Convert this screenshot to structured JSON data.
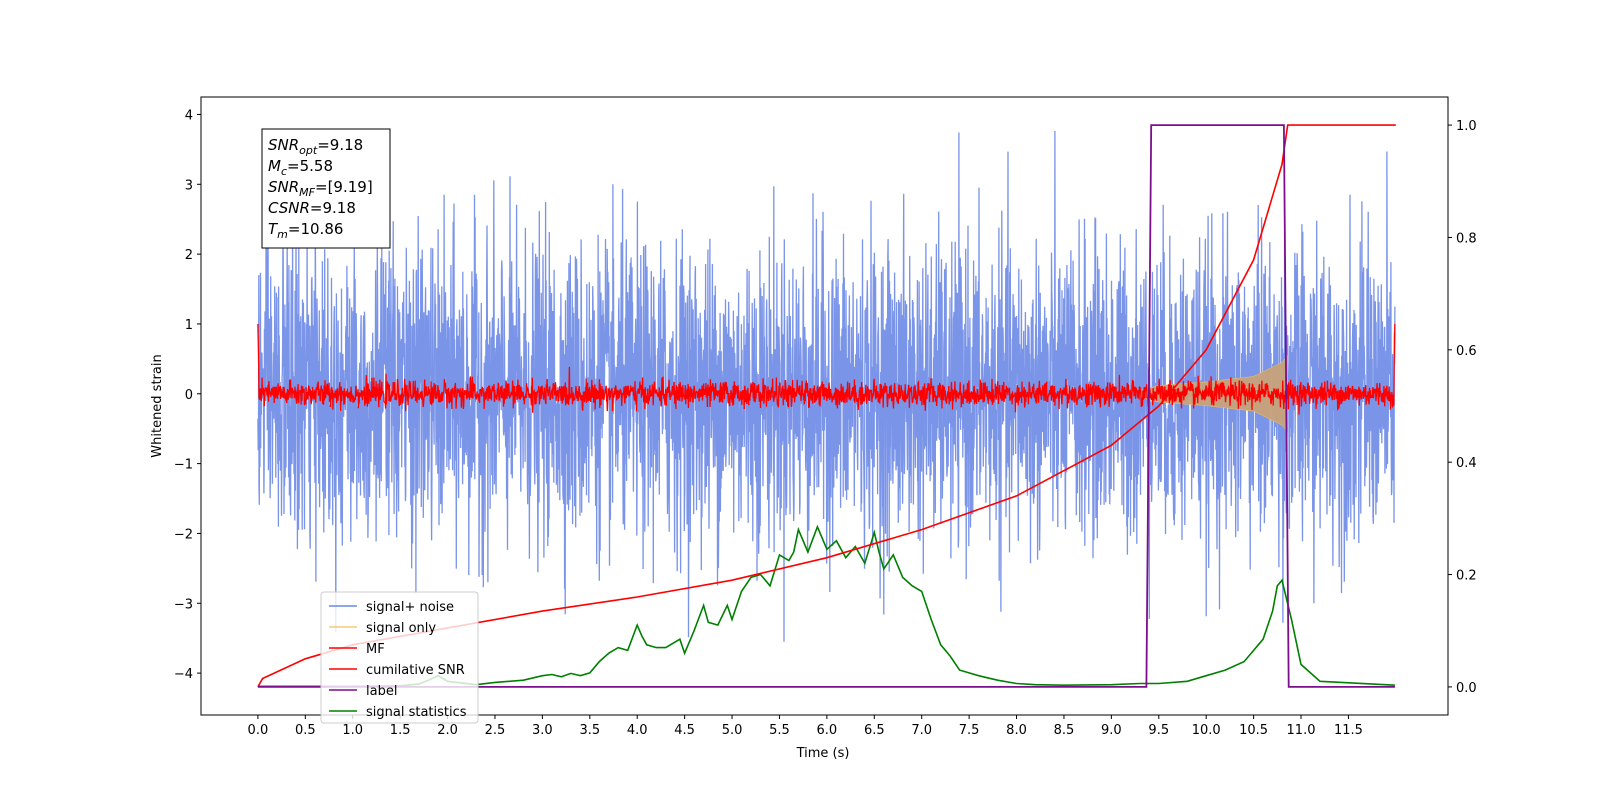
{
  "chart_data": {
    "type": "line",
    "title": "",
    "xlabel": "Time (s)",
    "ylabel": "Whitened strain",
    "xlim": [
      -0.6,
      12.55
    ],
    "ylim": [
      -4.6,
      4.25
    ],
    "y2lim": [
      -0.05,
      1.05
    ],
    "x_ticks": [
      "0.0",
      "0.5",
      "1.0",
      "1.5",
      "2.0",
      "2.5",
      "3.0",
      "3.5",
      "4.0",
      "4.5",
      "5.0",
      "5.5",
      "6.0",
      "6.5",
      "7.0",
      "7.5",
      "8.0",
      "8.5",
      "9.0",
      "9.5",
      "10.0",
      "10.5",
      "11.0",
      "11.5"
    ],
    "y_ticks": [
      "4",
      "3",
      "2",
      "1",
      "0",
      "−1",
      "−2",
      "−3",
      "−4"
    ],
    "y2_ticks": [
      "1.0",
      "0.8",
      "0.6",
      "0.4",
      "0.2",
      "0.0"
    ],
    "grid": false,
    "legend_position": "lower-left",
    "colors": {
      "signal_noise": "#6b88e6",
      "signal_only": "#f0c060",
      "mf": "#ff0000",
      "cumulative_snr": "#ff0000",
      "label": "#7b0f8c",
      "signal_statistics": "#008000",
      "signal_envelope": "#c8a27a"
    },
    "series": [
      {
        "key": "signal_noise",
        "name": "signal+ noise",
        "axis": "left",
        "noise_sigma": 1.0,
        "x_range": [
          0.0,
          11.99
        ]
      },
      {
        "key": "signal_only",
        "name": "signal only",
        "axis": "left",
        "envelope": [
          [
            9.3,
            0.05
          ],
          [
            9.5,
            0.12
          ],
          [
            10.0,
            0.17
          ],
          [
            10.5,
            0.25
          ],
          [
            10.8,
            0.45
          ],
          [
            10.86,
            0.55
          ]
        ]
      },
      {
        "key": "mf",
        "name": "MF",
        "axis": "left",
        "noise_sigma": 0.09,
        "x_range": [
          0.0,
          11.99
        ]
      },
      {
        "key": "cumulative_snr",
        "name": "cumilative SNR",
        "axis": "right",
        "x": [
          0.0,
          0.05,
          0.5,
          1.0,
          2.0,
          3.0,
          4.0,
          5.0,
          6.0,
          7.0,
          8.0,
          9.0,
          9.5,
          10.0,
          10.5,
          10.8,
          10.86,
          12.0
        ],
        "values": [
          0.0,
          0.015,
          0.05,
          0.075,
          0.105,
          0.135,
          0.16,
          0.19,
          0.23,
          0.28,
          0.34,
          0.43,
          0.5,
          0.6,
          0.76,
          0.93,
          1.0,
          1.0
        ]
      },
      {
        "key": "label",
        "name": "label",
        "axis": "right",
        "x": [
          0.0,
          9.37,
          9.42,
          10.82,
          10.87,
          11.99
        ],
        "values": [
          0.0,
          0.0,
          1.0,
          1.0,
          0.0,
          0.0
        ]
      },
      {
        "key": "signal_statistics",
        "name": "signal statistics",
        "axis": "right",
        "x": [
          0.0,
          1.0,
          1.5,
          1.7,
          1.8,
          1.9,
          2.0,
          2.3,
          2.5,
          2.8,
          3.0,
          3.1,
          3.2,
          3.3,
          3.4,
          3.5,
          3.6,
          3.7,
          3.8,
          3.9,
          4.0,
          4.05,
          4.1,
          4.2,
          4.3,
          4.45,
          4.5,
          4.6,
          4.7,
          4.75,
          4.85,
          4.95,
          5.0,
          5.1,
          5.2,
          5.3,
          5.4,
          5.5,
          5.6,
          5.65,
          5.7,
          5.8,
          5.9,
          6.0,
          6.1,
          6.2,
          6.3,
          6.4,
          6.5,
          6.55,
          6.6,
          6.7,
          6.8,
          6.9,
          7.0,
          7.1,
          7.2,
          7.3,
          7.4,
          7.5,
          7.6,
          7.8,
          8.0,
          8.2,
          8.5,
          9.0,
          9.3,
          9.5,
          9.8,
          10.0,
          10.2,
          10.4,
          10.5,
          10.6,
          10.7,
          10.75,
          10.8,
          10.9,
          11.0,
          11.2,
          11.99
        ],
        "values": [
          0.001,
          0.001,
          0.002,
          0.005,
          0.012,
          0.02,
          0.01,
          0.004,
          0.008,
          0.012,
          0.02,
          0.022,
          0.018,
          0.024,
          0.02,
          0.025,
          0.045,
          0.06,
          0.07,
          0.065,
          0.11,
          0.09,
          0.075,
          0.07,
          0.07,
          0.085,
          0.06,
          0.1,
          0.145,
          0.115,
          0.11,
          0.145,
          0.12,
          0.17,
          0.195,
          0.2,
          0.18,
          0.235,
          0.225,
          0.24,
          0.28,
          0.24,
          0.285,
          0.245,
          0.26,
          0.23,
          0.25,
          0.22,
          0.275,
          0.24,
          0.21,
          0.235,
          0.195,
          0.18,
          0.17,
          0.12,
          0.075,
          0.055,
          0.03,
          0.025,
          0.02,
          0.012,
          0.006,
          0.004,
          0.003,
          0.004,
          0.006,
          0.006,
          0.01,
          0.02,
          0.03,
          0.045,
          0.065,
          0.085,
          0.135,
          0.18,
          0.19,
          0.12,
          0.04,
          0.01,
          0.003
        ]
      }
    ]
  },
  "info_box": [
    {
      "base": "SNR",
      "sub": "opt",
      "value": "=9.18"
    },
    {
      "base": "M",
      "sub": "c",
      "value": "=5.58"
    },
    {
      "base": "SNR",
      "sub": "MF",
      "value": "=[9.19]"
    },
    {
      "base": "CSNR",
      "sub": "",
      "value": "=9.18"
    },
    {
      "base": "T",
      "sub": "m",
      "value": "=10.86"
    }
  ]
}
